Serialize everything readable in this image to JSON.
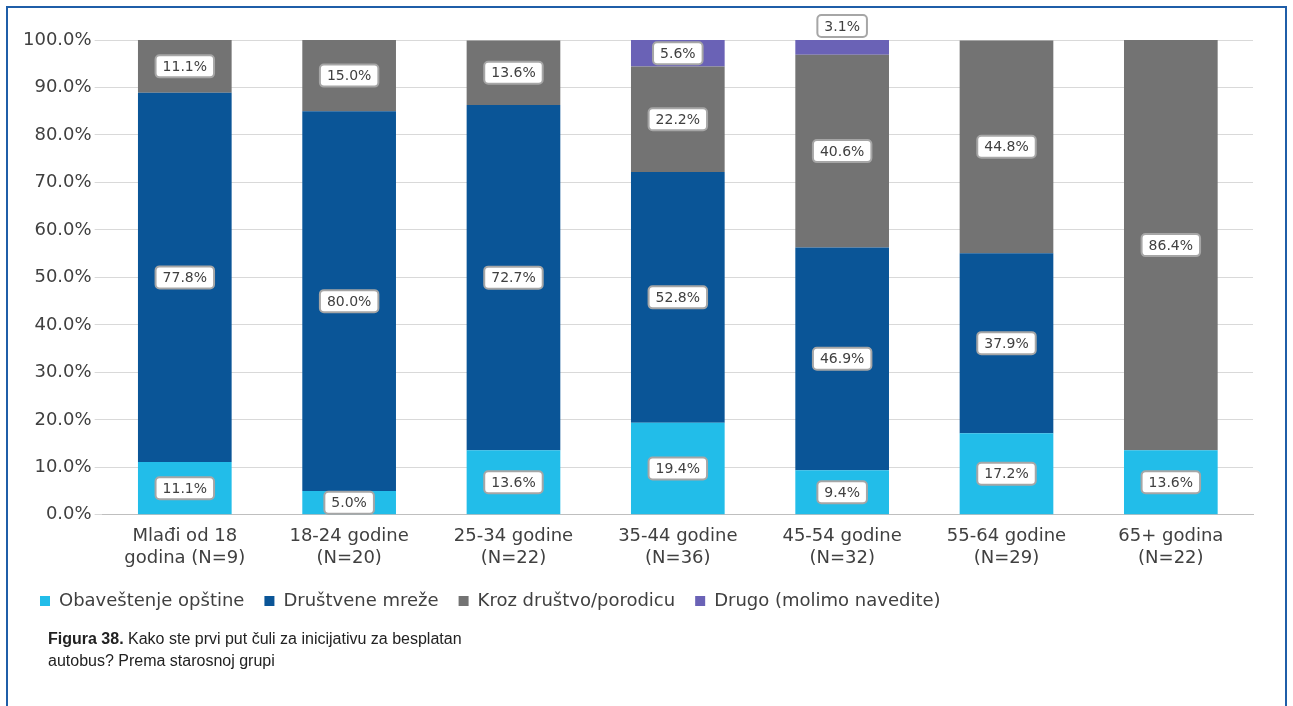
{
  "chart_data": {
    "type": "bar",
    "stacked": true,
    "title": "Figura 38.",
    "subtitle": "Kako ste prvi put čuli za inicijativu za besplatan autobus? Prema starosnoj grupi",
    "categories": [
      "Mlađi od 18 godina (N=9)",
      "18-24 godine (N=20)",
      "25-34 godine (N=22)",
      "35-44 godine (N=36)",
      "45-54 godine (N=32)",
      "55-64 godine (N=29)",
      "65+ godina (N=22)"
    ],
    "series": [
      {
        "name": "Obaveštenje opštine",
        "color": "#22bde9",
        "values": [
          11.1,
          5.0,
          13.6,
          19.4,
          9.4,
          17.2,
          13.6
        ],
        "value_labels": [
          "11.1%",
          "5.0%",
          "13.6%",
          "19.4%",
          "9.4%",
          "17.2%",
          "13.6%"
        ]
      },
      {
        "name": "Društvene mreže",
        "color": "#0a5597",
        "values": [
          77.8,
          80.0,
          72.7,
          52.8,
          46.9,
          37.9,
          null
        ],
        "value_labels": [
          "77.8%",
          "80.0%",
          "72.7%",
          "52.8%",
          "46.9%",
          "37.9%",
          null
        ]
      },
      {
        "name": "Kroz društvo/porodicu",
        "color": "#737373",
        "values": [
          11.1,
          15.0,
          13.6,
          22.2,
          40.6,
          44.8,
          86.4
        ],
        "value_labels": [
          "11.1%",
          "15.0%",
          "13.6%",
          "22.2%",
          "40.6%",
          "44.8%",
          "86.4%"
        ]
      },
      {
        "name": "Drugo (molimo navedite)",
        "color": "#6a62b6",
        "values": [
          null,
          null,
          null,
          5.6,
          3.1,
          null,
          null
        ],
        "value_labels": [
          null,
          null,
          null,
          "5.6%",
          "3.1%",
          null,
          null
        ]
      }
    ],
    "ylim": [
      0,
      100
    ],
    "yticks": [
      {
        "value": 0,
        "label": "0.0%"
      },
      {
        "value": 10,
        "label": "10.0%"
      },
      {
        "value": 20,
        "label": "20.0%"
      },
      {
        "value": 30,
        "label": "30.0%"
      },
      {
        "value": 40,
        "label": "40.0%"
      },
      {
        "value": 50,
        "label": "50.0%"
      },
      {
        "value": 60,
        "label": "60.0%"
      },
      {
        "value": 70,
        "label": "70.0%"
      },
      {
        "value": 80,
        "label": "80.0%"
      },
      {
        "value": 90,
        "label": "90.0%"
      },
      {
        "value": 100,
        "label": "100.0%"
      }
    ],
    "grid": "y",
    "legend": "bottom"
  }
}
